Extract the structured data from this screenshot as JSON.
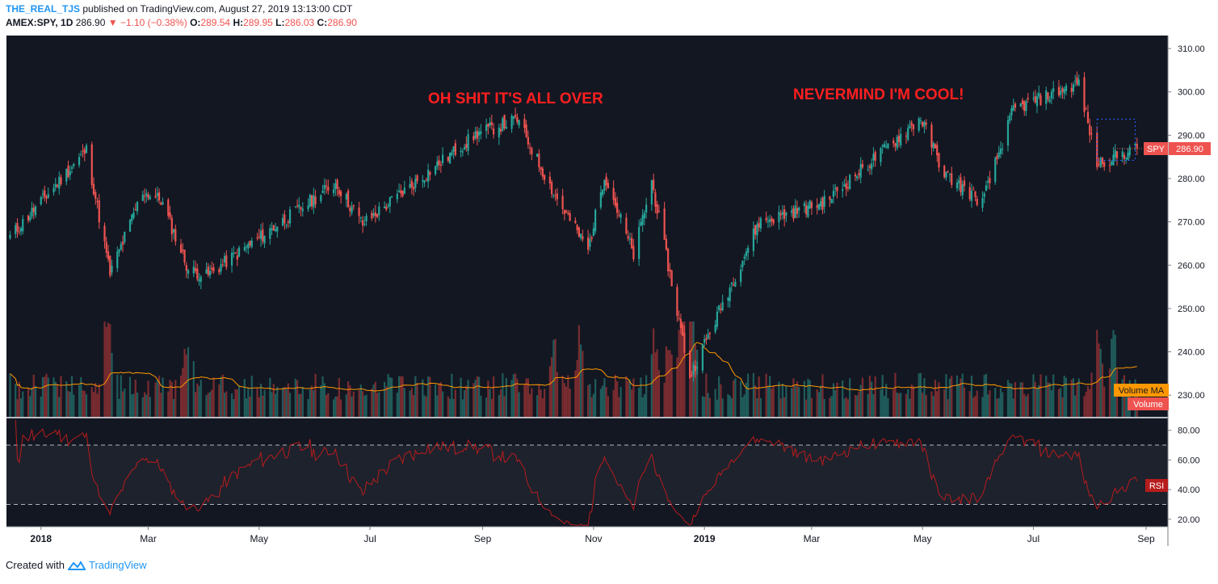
{
  "header": {
    "author": "THE_REAL_TJS",
    "published": "published on TradingView.com, August 27, 2019 13:13:00 CDT",
    "symbol": "AMEX:SPY, 1D",
    "last": "286.90",
    "change_arrow": "▼",
    "change": "−1.10 (−0.38%)",
    "o_label": "O:",
    "o_value": "289.54",
    "h_label": "H:",
    "h_value": "289.95",
    "l_label": "L:",
    "l_value": "286.03",
    "c_label": "C:",
    "c_value": "286.90"
  },
  "annotations": {
    "left": "OH SHIT IT'S ALL OVER",
    "right": "NEVERMIND I'M COOL!"
  },
  "labels": {
    "spy": "SPY",
    "spy_value": "286.90",
    "volume_ma": "Volume MA",
    "volume": "Volume",
    "rsi": "RSI"
  },
  "footer": {
    "created_with": "Created with",
    "brand": "TradingView"
  },
  "colors": {
    "background": "#131722",
    "up": "#26a69a",
    "down": "#ef5350",
    "volume_up": "#1f5c5b",
    "volume_down": "#7a2c30",
    "volume_ma": "#ff9800",
    "rsi_line": "#b71c1c",
    "grid": "#363a45",
    "axis_text": "#131722"
  },
  "chart_data": [
    {
      "type": "candlestick",
      "title": "AMEX:SPY, 1D",
      "y_axis_ticks": [
        230,
        240,
        250,
        260,
        270,
        280,
        290,
        300,
        310
      ],
      "y_axis_tick_labels": [
        "230.00",
        "240.00",
        "250.00",
        "260.00",
        "270.00",
        "280.00",
        "290.00",
        "300.00",
        "310.00"
      ],
      "x_axis_tick_labels": [
        "2018",
        "Mar",
        "May",
        "Jul",
        "Sep",
        "Nov",
        "2019",
        "Mar",
        "May",
        "Jul",
        "Sep"
      ],
      "ylim": [
        225,
        313
      ],
      "series": [
        {
          "name": "SPY",
          "anchor_dates": [
            "2017-12-15",
            "2018-01-26",
            "2018-02-08",
            "2018-02-26",
            "2018-03-08",
            "2018-03-23",
            "2018-04-02",
            "2018-06-12",
            "2018-06-27",
            "2018-08-29",
            "2018-09-20",
            "2018-10-11",
            "2018-10-29",
            "2018-11-07",
            "2018-11-23",
            "2018-12-03",
            "2018-12-24",
            "2019-01-31",
            "2019-03-08",
            "2019-04-30",
            "2019-05-13",
            "2019-06-03",
            "2019-06-20",
            "2019-07-26",
            "2019-08-05",
            "2019-08-27"
          ],
          "anchor_closes": [
            266.5,
            286.6,
            258.0,
            277.0,
            275.0,
            259.0,
            257.5,
            278.9,
            269.5,
            290.4,
            293.6,
            275.9,
            263.5,
            281.0,
            262.3,
            279.3,
            234.3,
            269.9,
            274.5,
            294.0,
            281.0,
            274.5,
            295.9,
            302.0,
            283.5,
            286.9
          ]
        }
      ],
      "last_value": 286.9,
      "consolidation_box": {
        "start": "2019-08-05",
        "end": "2019-08-26",
        "high": 293.7,
        "low": 284.2
      }
    },
    {
      "type": "bar",
      "title": "Volume",
      "notes": "volume bars colored by candle direction with Volume MA overlay; relative scale",
      "spike_dates": [
        "2018-02-05",
        "2018-02-08",
        "2018-03-23",
        "2018-10-10",
        "2018-10-24",
        "2018-12-04",
        "2018-12-21",
        "2018-12-24",
        "2019-08-05",
        "2019-08-14"
      ]
    },
    {
      "type": "line",
      "title": "RSI",
      "y_axis_tick_labels": [
        "20.00",
        "40.00",
        "60.00",
        "80.00"
      ],
      "ylim": [
        15,
        88
      ],
      "overbought": 70,
      "oversold": 30,
      "notes": "RSI(14) computed from the daily closes"
    }
  ]
}
